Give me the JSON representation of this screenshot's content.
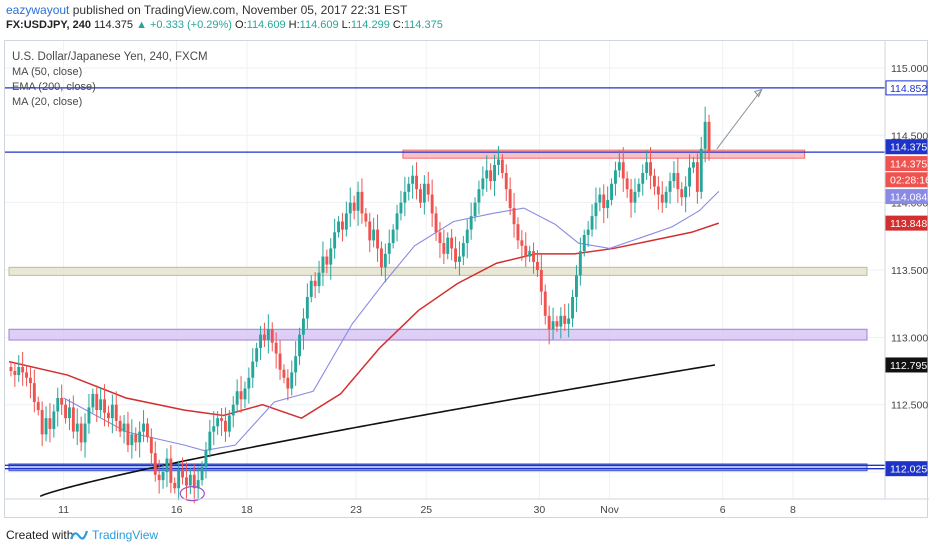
{
  "header": {
    "user": "eazywayout",
    "published": "published on TradingView.com, November 05, 2017 22:31 EST",
    "symbol": "FX:USDJPY, 240",
    "last": "114.375",
    "change": "▲ +0.333 (+0.29%)",
    "ohlc": {
      "o_label": "O:",
      "o": "114.609",
      "h_label": "H:",
      "h": "114.609",
      "l_label": "L:",
      "l": "114.299",
      "c_label": "C:",
      "c": "114.375"
    }
  },
  "legend": {
    "title": "U.S. Dollar/Japanese Yen, 240, FXCM",
    "ma50": "MA (50, close)",
    "ema200": "EMA (200, close)",
    "ma20": "MA (20, close)"
  },
  "footer": {
    "created": "Created with",
    "brand": "TradingView"
  },
  "colors": {
    "up": "#26a69a",
    "down": "#ef5350",
    "ema200": "#111111",
    "ma50": "#d32f2f",
    "ma20": "#8a8ae6",
    "level_line": "#1d33c9",
    "zone_beige": "#e6e3cf",
    "zone_purple": "#d9c7f5",
    "zone_pink": "#f7b6c1",
    "circle": "#9c4fc9"
  },
  "chart_data": {
    "type": "candlestick",
    "ylim": [
      111.8,
      115.2
    ],
    "y_ticks": [
      "115.000",
      "114.500",
      "114.000",
      "113.500",
      "113.000",
      "112.500",
      "112.000"
    ],
    "x_ticks": [
      {
        "label": "11",
        "bar": 14
      },
      {
        "label": "16",
        "bar": 43
      },
      {
        "label": "18",
        "bar": 61
      },
      {
        "label": "23",
        "bar": 89
      },
      {
        "label": "25",
        "bar": 107
      },
      {
        "label": "30",
        "bar": 136
      },
      {
        "label": "Nov",
        "bar": 154
      },
      {
        "label": "6",
        "bar": 183
      },
      {
        "label": "8",
        "bar": 201
      }
    ],
    "price_labels": [
      {
        "value": "114.852",
        "y": 114.852,
        "bg": "#ffffff",
        "fg": "#1d33c9",
        "border": "#1d33c9"
      },
      {
        "value": "114.375",
        "y": 114.415,
        "bg": "#1d33c9",
        "fg": "#ffffff",
        "border": "#1d33c9"
      },
      {
        "value": "114.375",
        "y": 114.29,
        "bg": "#ef5350",
        "fg": "#ffffff",
        "border": "#ef5350"
      },
      {
        "value": "02:28:16",
        "y": 114.17,
        "bg": "#ef5350",
        "fg": "#ffffff",
        "border": "#ef5350"
      },
      {
        "value": "114.084",
        "y": 114.045,
        "bg": "#8a8ae6",
        "fg": "#ffffff",
        "border": "#8a8ae6"
      },
      {
        "value": "113.848",
        "y": 113.848,
        "bg": "#d32f2f",
        "fg": "#ffffff",
        "border": "#d32f2f"
      },
      {
        "value": "112.795",
        "y": 112.795,
        "bg": "#111111",
        "fg": "#ffffff",
        "border": "#111111"
      },
      {
        "value": "112.025",
        "y": 112.025,
        "bg": "#1d33c9",
        "fg": "#ffffff",
        "border": "#1d33c9"
      }
    ],
    "horizontal_lines": [
      114.852,
      114.375,
      112.025,
      112.05
    ],
    "zones": [
      {
        "from": 114.33,
        "to": 114.39,
        "bar_start": 101,
        "bar_end": 204,
        "kind": "pink"
      },
      {
        "from": 113.46,
        "to": 113.52,
        "bar_start": 0,
        "bar_end": 220,
        "kind": "beige"
      },
      {
        "from": 112.98,
        "to": 113.06,
        "bar_start": 0,
        "bar_end": 220,
        "kind": "purple"
      },
      {
        "from": 112.01,
        "to": 112.06,
        "bar_start": 0,
        "bar_end": 220,
        "kind": "blue"
      }
    ],
    "bars": {
      "t_start": 0,
      "count": 182,
      "closes": [
        112.75,
        112.72,
        112.78,
        112.74,
        112.7,
        112.66,
        112.52,
        112.46,
        112.28,
        112.4,
        112.32,
        112.45,
        112.55,
        112.5,
        112.4,
        112.48,
        112.3,
        112.36,
        112.22,
        112.36,
        112.48,
        112.58,
        112.46,
        112.54,
        112.44,
        112.4,
        112.5,
        112.38,
        112.3,
        112.36,
        112.2,
        112.28,
        112.22,
        112.3,
        112.36,
        112.26,
        112.14,
        111.98,
        111.94,
        112.0,
        112.1,
        111.92,
        111.88,
        112.02,
        111.96,
        111.9,
        111.98,
        111.88,
        111.94,
        112.04,
        112.16,
        112.3,
        112.34,
        112.4,
        112.38,
        112.3,
        112.42,
        112.5,
        112.6,
        112.54,
        112.62,
        112.7,
        112.82,
        112.92,
        113.02,
        112.98,
        113.06,
        112.96,
        112.88,
        112.76,
        112.7,
        112.62,
        112.74,
        112.86,
        113.02,
        113.14,
        113.3,
        113.42,
        113.38,
        113.48,
        113.6,
        113.54,
        113.66,
        113.78,
        113.86,
        113.8,
        113.92,
        114.0,
        113.94,
        114.08,
        113.92,
        113.86,
        113.72,
        113.8,
        113.66,
        113.52,
        113.62,
        113.7,
        113.8,
        113.92,
        114.0,
        114.08,
        114.14,
        114.2,
        114.1,
        114.0,
        114.14,
        114.06,
        113.92,
        113.78,
        113.7,
        113.62,
        113.74,
        113.66,
        113.56,
        113.6,
        113.7,
        113.8,
        113.9,
        114.0,
        114.1,
        114.18,
        114.24,
        114.16,
        114.28,
        114.32,
        114.22,
        114.1,
        113.96,
        113.84,
        113.72,
        113.68,
        113.6,
        113.64,
        113.56,
        113.5,
        113.34,
        113.16,
        113.06,
        113.12,
        113.08,
        113.16,
        113.1,
        113.14,
        113.3,
        113.46,
        113.64,
        113.76,
        113.8,
        113.9,
        114.0,
        114.06,
        113.96,
        114.02,
        114.14,
        114.24,
        114.3,
        114.18,
        114.1,
        114.0,
        114.08,
        114.14,
        114.22,
        114.3,
        114.2,
        114.12,
        114.06,
        114.0,
        114.08,
        114.16,
        114.22,
        114.1,
        114.04,
        114.12,
        114.26,
        114.3,
        114.08,
        114.4,
        114.6,
        114.375
      ]
    },
    "ema200": {
      "bar_start": 8,
      "from": 111.82,
      "to": 112.795
    },
    "ma50": [
      [
        0,
        112.82
      ],
      [
        15,
        112.72
      ],
      [
        30,
        112.55
      ],
      [
        45,
        112.46
      ],
      [
        55,
        112.42
      ],
      [
        65,
        112.5
      ],
      [
        75,
        112.4
      ],
      [
        85,
        112.58
      ],
      [
        95,
        112.92
      ],
      [
        105,
        113.2
      ],
      [
        115,
        113.4
      ],
      [
        125,
        113.55
      ],
      [
        135,
        113.62
      ],
      [
        145,
        113.62
      ],
      [
        155,
        113.66
      ],
      [
        165,
        113.72
      ],
      [
        175,
        113.78
      ],
      [
        182,
        113.848
      ]
    ],
    "ma20": [
      [
        14,
        112.55
      ],
      [
        30,
        112.3
      ],
      [
        45,
        112.2
      ],
      [
        50,
        112.16
      ],
      [
        58,
        112.2
      ],
      [
        68,
        112.52
      ],
      [
        78,
        112.6
      ],
      [
        88,
        113.1
      ],
      [
        96,
        113.4
      ],
      [
        104,
        113.68
      ],
      [
        114,
        113.86
      ],
      [
        124,
        113.92
      ],
      [
        132,
        113.96
      ],
      [
        140,
        113.84
      ],
      [
        146,
        113.7
      ],
      [
        154,
        113.66
      ],
      [
        162,
        113.74
      ],
      [
        170,
        113.82
      ],
      [
        177,
        113.94
      ],
      [
        182,
        114.084
      ]
    ]
  }
}
